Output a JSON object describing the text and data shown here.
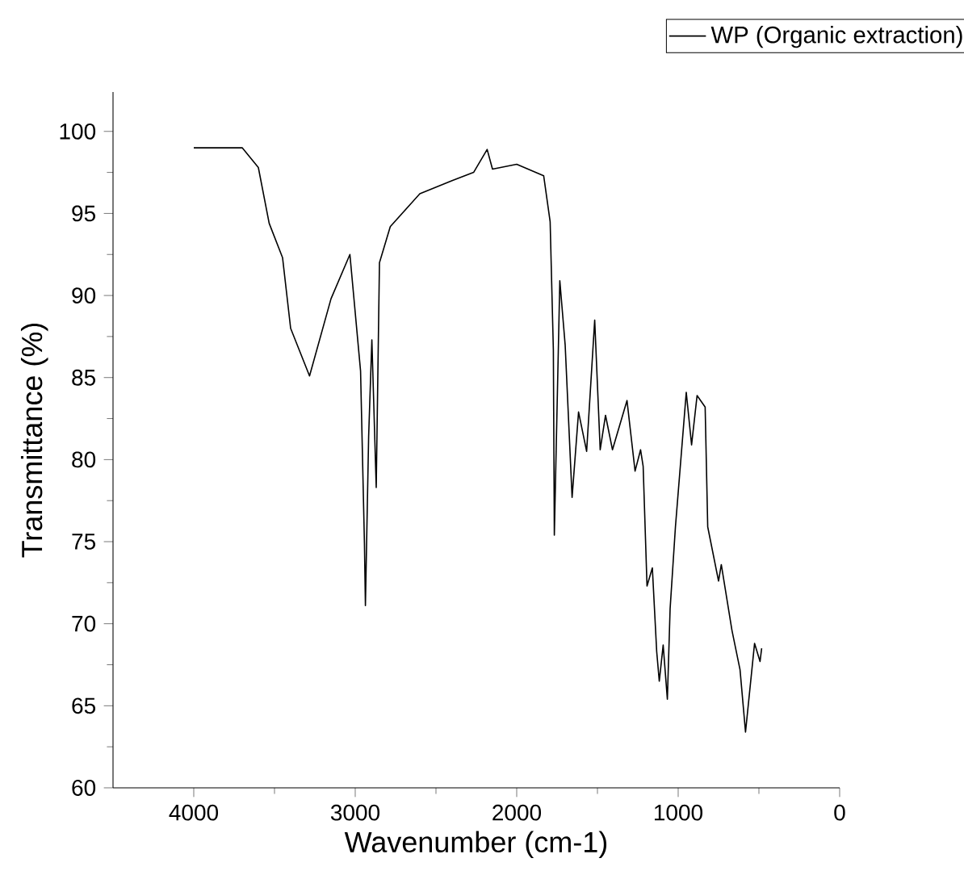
{
  "chart_data": {
    "type": "line",
    "xlabel": "Wavenumber (cm-1)",
    "ylabel": "Transmittance (%)",
    "xlim": [
      4500,
      0
    ],
    "xticks": [
      4000,
      3000,
      2000,
      1000,
      0
    ],
    "ylim": [
      60,
      102.4
    ],
    "yticks": [
      60,
      65,
      70,
      75,
      80,
      85,
      90,
      95,
      100
    ],
    "legend": "top right",
    "grid": false,
    "marker": "none",
    "line_style": "solid",
    "series": [
      {
        "name": "WP (Organic extraction)",
        "color": "#000000",
        "x": [
          4000,
          3700,
          3600,
          3533,
          3450,
          3400,
          3283,
          3150,
          3033,
          2967,
          2943,
          2937,
          2917,
          2897,
          2870,
          2850,
          2783,
          2600,
          2400,
          2267,
          2183,
          2150,
          2000,
          1833,
          1793,
          1773,
          1767,
          1733,
          1700,
          1657,
          1617,
          1567,
          1517,
          1483,
          1450,
          1407,
          1317,
          1267,
          1233,
          1217,
          1193,
          1160,
          1133,
          1117,
          1093,
          1067,
          1050,
          1017,
          950,
          917,
          883,
          833,
          817,
          750,
          733,
          667,
          617,
          583,
          527,
          493,
          483
        ],
        "values": [
          99.0,
          99.0,
          97.8,
          94.4,
          92.3,
          88.0,
          85.1,
          89.8,
          92.5,
          85.4,
          74.9,
          71.1,
          81.4,
          87.3,
          78.3,
          92.0,
          94.2,
          96.2,
          97.0,
          97.5,
          98.9,
          97.7,
          98.0,
          97.3,
          94.5,
          86.7,
          75.4,
          90.9,
          87.0,
          77.7,
          82.9,
          80.5,
          88.5,
          80.6,
          82.7,
          80.6,
          83.6,
          79.3,
          80.6,
          79.6,
          72.3,
          73.4,
          68.3,
          66.5,
          68.7,
          65.4,
          70.9,
          75.9,
          84.1,
          80.9,
          83.9,
          83.2,
          75.9,
          72.6,
          73.6,
          69.6,
          67.2,
          63.4,
          68.8,
          67.7,
          68.5
        ]
      }
    ]
  }
}
